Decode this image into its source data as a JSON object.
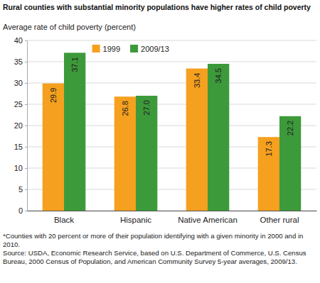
{
  "chart_data": {
    "type": "bar",
    "title": "Rural counties with substantial minority populations have higher rates of child poverty",
    "y_label": "Average rate of child poverty (percent)",
    "categories": [
      "Black",
      "Hispanic",
      "Native American",
      "Other rural"
    ],
    "series": [
      {
        "name": "1999",
        "color": "#f5a01e",
        "values": [
          29.9,
          26.8,
          33.4,
          17.3
        ],
        "value_labels": [
          "29.9",
          "26.8",
          "33.4",
          "17.3"
        ]
      },
      {
        "name": "2009/13",
        "color": "#3d9a3a",
        "values": [
          37.1,
          27.0,
          34.5,
          22.2
        ],
        "value_labels": [
          "37.1",
          "27.0",
          "34.5",
          "22.2"
        ]
      }
    ],
    "ylim": [
      0,
      40
    ],
    "yticks": [
      0,
      5,
      10,
      15,
      20,
      25,
      30,
      35,
      40
    ],
    "grid": true,
    "legend": "top",
    "data_labels": true,
    "annotations": [
      "*Counties with 20 percent or more of their population identifying with a given minority in 2000 and in 2010.",
      "Source: USDA, Economic Research Service, based on U.S. Department of Commerce, U.S. Census Bureau, 2000 Census of Population, and American Community Survey 5-year averages, 2009/13."
    ]
  }
}
